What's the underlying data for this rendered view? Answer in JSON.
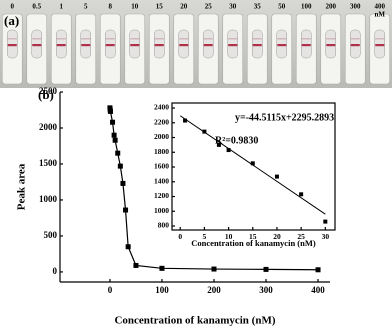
{
  "panel_a": {
    "label": "(a)",
    "strip_labels": [
      "0",
      "0.5",
      "1",
      "5",
      "8",
      "10",
      "15",
      "20",
      "25",
      "30",
      "35",
      "50",
      "100",
      "200",
      "300",
      "400"
    ],
    "unit": "nM"
  },
  "panel_b": {
    "label": "(b)"
  },
  "chart_data": [
    {
      "type": "line",
      "y_label": "Peak area",
      "x_label": "Concentration of kanamycin (nM)",
      "x": [
        0,
        0.5,
        1,
        5,
        8,
        10,
        15,
        20,
        25,
        30,
        35,
        50,
        100,
        200,
        300,
        400
      ],
      "series": [
        {
          "name": "Peak area",
          "color": "#000000",
          "values": [
            2280,
            2250,
            2230,
            2080,
            1900,
            1830,
            1650,
            1470,
            1230,
            860,
            350,
            90,
            50,
            40,
            35,
            30
          ]
        }
      ],
      "xlim": [
        -96,
        423
      ],
      "xticks": [
        0,
        100,
        200,
        300,
        400
      ],
      "ylim": [
        -140,
        2500
      ],
      "yticks": [
        0,
        500,
        1000,
        1500,
        2000,
        2500
      ]
    },
    {
      "type": "scatter",
      "x_label": "Concentration of kanamycin (nM)",
      "equation": "y=-44.5115x+2295.2893",
      "r_squared": "R²=0.9830",
      "fit": {
        "slope": -44.5115,
        "intercept": 2295.2893
      },
      "x": [
        1,
        5,
        8,
        10,
        15,
        20,
        25,
        30
      ],
      "series": [
        {
          "name": "Peak area",
          "color": "#000000",
          "values": [
            2230,
            2080,
            1900,
            1830,
            1650,
            1470,
            1230,
            860
          ]
        }
      ],
      "xlim": [
        -1.7,
        32
      ],
      "xticks": [
        0,
        5,
        10,
        15,
        20,
        25,
        30
      ],
      "ylim": [
        746,
        2468
      ],
      "yticks": [
        800,
        1000,
        1200,
        1400,
        1600,
        1800,
        2000,
        2200,
        2400
      ]
    }
  ]
}
